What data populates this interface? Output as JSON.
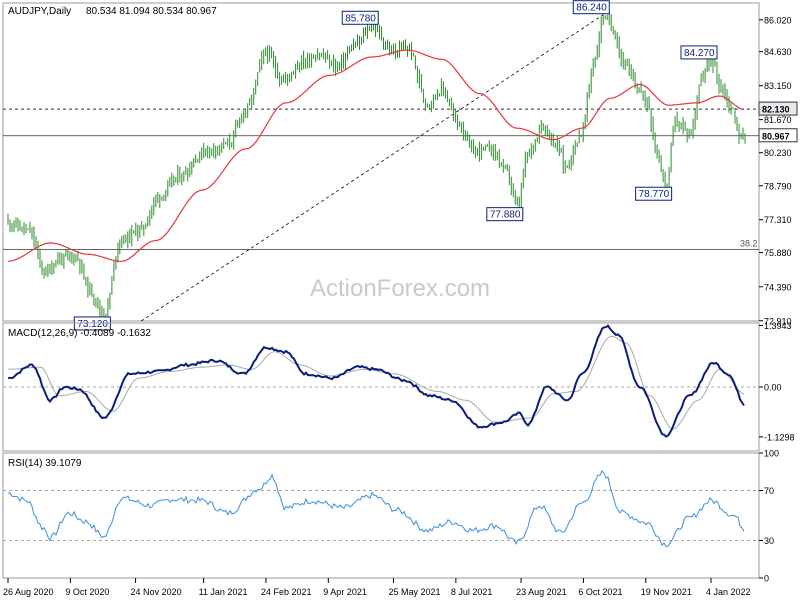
{
  "colors": {
    "price_bars": "#2e8b2e",
    "ma": "#e8353a",
    "macd": "#0b1f7a",
    "signal": "#a8a8a8",
    "rsi": "#3a8fe0",
    "grid": "#888888",
    "label_box": "#0b1f7a",
    "watermark": "#c9c9c9"
  },
  "chart_data": [
    {
      "type": "ohlc",
      "title": "AUDJPY,Daily",
      "ohlc_header": "80.534 81.094 80.534 80.967",
      "watermark": "ActionForex.com",
      "y_ticks": [
        "86.020",
        "84.630",
        "83.150",
        "81.670",
        "80.230",
        "78.790",
        "77.310",
        "75.880",
        "74.390",
        "72.910"
      ],
      "ylim": [
        72.9,
        86.75
      ],
      "x_tick_labels": [
        "26 Aug 2020",
        "9 Oct 2020",
        "24 Nov 2020",
        "11 Jan 2021",
        "24 Feb 2021",
        "9 Apr 2021",
        "25 May 2021",
        "8 Jul 2021",
        "23 Aug 2021",
        "6 Oct 2021",
        "19 Nov 2021",
        "4 Jan 2022"
      ],
      "close_anchors": [
        {
          "date": "2020-08-26",
          "value": 77.2
        },
        {
          "date": "2020-09-10",
          "value": 76.8
        },
        {
          "date": "2020-09-21",
          "value": 75.0
        },
        {
          "date": "2020-10-01",
          "value": 75.6
        },
        {
          "date": "2020-10-13",
          "value": 75.7
        },
        {
          "date": "2020-10-23",
          "value": 74.2
        },
        {
          "date": "2020-11-02",
          "value": 73.12
        },
        {
          "date": "2020-11-13",
          "value": 76.4
        },
        {
          "date": "2020-11-28",
          "value": 76.9
        },
        {
          "date": "2020-12-10",
          "value": 78.3
        },
        {
          "date": "2020-12-25",
          "value": 79.2
        },
        {
          "date": "2021-01-12",
          "value": 80.3
        },
        {
          "date": "2021-01-28",
          "value": 80.6
        },
        {
          "date": "2021-02-10",
          "value": 82.1
        },
        {
          "date": "2021-02-24",
          "value": 84.6
        },
        {
          "date": "2021-03-08",
          "value": 83.4
        },
        {
          "date": "2021-03-22",
          "value": 84.2
        },
        {
          "date": "2021-04-02",
          "value": 84.5
        },
        {
          "date": "2021-04-15",
          "value": 84.0
        },
        {
          "date": "2021-04-28",
          "value": 84.9
        },
        {
          "date": "2021-05-10",
          "value": 85.78
        },
        {
          "date": "2021-05-24",
          "value": 84.6
        },
        {
          "date": "2021-06-04",
          "value": 84.8
        },
        {
          "date": "2021-06-18",
          "value": 82.4
        },
        {
          "date": "2021-06-28",
          "value": 83.0
        },
        {
          "date": "2021-07-10",
          "value": 81.5
        },
        {
          "date": "2021-07-20",
          "value": 80.3
        },
        {
          "date": "2021-08-02",
          "value": 80.4
        },
        {
          "date": "2021-08-13",
          "value": 79.4
        },
        {
          "date": "2021-08-20",
          "value": 77.88
        },
        {
          "date": "2021-08-28",
          "value": 80.2
        },
        {
          "date": "2021-09-07",
          "value": 81.4
        },
        {
          "date": "2021-09-18",
          "value": 80.5
        },
        {
          "date": "2021-09-23",
          "value": 79.6
        },
        {
          "date": "2021-10-04",
          "value": 81.0
        },
        {
          "date": "2021-10-14",
          "value": 84.3
        },
        {
          "date": "2021-10-20",
          "value": 86.24
        },
        {
          "date": "2021-10-27",
          "value": 85.6
        },
        {
          "date": "2021-11-03",
          "value": 84.2
        },
        {
          "date": "2021-11-12",
          "value": 83.2
        },
        {
          "date": "2021-11-20",
          "value": 82.4
        },
        {
          "date": "2021-11-27",
          "value": 80.2
        },
        {
          "date": "2021-12-03",
          "value": 78.77
        },
        {
          "date": "2021-12-10",
          "value": 81.6
        },
        {
          "date": "2021-12-20",
          "value": 81.0
        },
        {
          "date": "2021-12-28",
          "value": 83.4
        },
        {
          "date": "2022-01-04",
          "value": 84.27
        },
        {
          "date": "2022-01-12",
          "value": 83.0
        },
        {
          "date": "2022-01-18",
          "value": 82.2
        },
        {
          "date": "2022-01-25",
          "value": 80.9
        },
        {
          "date": "2022-01-28",
          "value": 80.967
        }
      ],
      "ma_anchors": [
        {
          "date": "2020-08-26",
          "value": 75.5
        },
        {
          "date": "2020-09-25",
          "value": 76.3
        },
        {
          "date": "2020-10-22",
          "value": 75.8
        },
        {
          "date": "2020-11-14",
          "value": 75.5
        },
        {
          "date": "2020-12-08",
          "value": 76.4
        },
        {
          "date": "2021-01-10",
          "value": 78.6
        },
        {
          "date": "2021-02-10",
          "value": 80.4
        },
        {
          "date": "2021-03-10",
          "value": 82.4
        },
        {
          "date": "2021-04-10",
          "value": 83.6
        },
        {
          "date": "2021-05-10",
          "value": 84.4
        },
        {
          "date": "2021-06-04",
          "value": 84.7
        },
        {
          "date": "2021-06-28",
          "value": 84.3
        },
        {
          "date": "2021-07-25",
          "value": 82.8
        },
        {
          "date": "2021-08-20",
          "value": 81.3
        },
        {
          "date": "2021-09-15",
          "value": 80.8
        },
        {
          "date": "2021-10-05",
          "value": 81.3
        },
        {
          "date": "2021-10-25",
          "value": 82.6
        },
        {
          "date": "2021-11-15",
          "value": 83.2
        },
        {
          "date": "2021-12-05",
          "value": 82.3
        },
        {
          "date": "2021-12-25",
          "value": 82.4
        },
        {
          "date": "2022-01-10",
          "value": 82.7
        },
        {
          "date": "2022-01-28",
          "value": 82.1
        }
      ],
      "annotations": [
        {
          "label": "73.120",
          "date": "2020-11-02",
          "value": 73.12,
          "anchor": "bottom"
        },
        {
          "label": "85.780",
          "date": "2021-05-10",
          "value": 85.78,
          "anchor": "top"
        },
        {
          "label": "77.880",
          "date": "2021-08-20",
          "value": 77.88,
          "anchor": "bottom"
        },
        {
          "label": "86.240",
          "date": "2021-10-20",
          "value": 86.24,
          "anchor": "top"
        },
        {
          "label": "78.770",
          "date": "2021-12-03",
          "value": 78.77,
          "anchor": "bottom"
        },
        {
          "label": "84.270",
          "date": "2022-01-04",
          "value": 84.27,
          "anchor": "top"
        }
      ],
      "horizontal_lines": [
        {
          "value": 82.13,
          "style": "dashed",
          "label": "82.130"
        },
        {
          "value": 80.967,
          "style": "solid",
          "label": "80.967"
        },
        {
          "value": 76.02,
          "style": "solid",
          "label": "38.2"
        }
      ],
      "trendline": {
        "start": {
          "date": "2020-11-28",
          "value": 72.9
        },
        "end": {
          "date": "2021-10-20",
          "value": 86.24
        }
      }
    },
    {
      "type": "line",
      "title": "MACD(12,26,9) -0.4089 -0.1632",
      "y_ticks": [
        "1.3943",
        "0.00",
        "-1.1298"
      ],
      "ylim": [
        -1.45,
        1.45
      ],
      "series": [
        {
          "name": "MACD",
          "values": [
            {
              "date": "2020-08-26",
              "value": 0.2
            },
            {
              "date": "2020-09-12",
              "value": 0.5
            },
            {
              "date": "2020-09-25",
              "value": -0.3
            },
            {
              "date": "2020-10-05",
              "value": 0.0
            },
            {
              "date": "2020-10-15",
              "value": -0.05
            },
            {
              "date": "2020-11-02",
              "value": -0.7
            },
            {
              "date": "2020-11-20",
              "value": 0.3
            },
            {
              "date": "2020-12-10",
              "value": 0.35
            },
            {
              "date": "2020-12-30",
              "value": 0.5
            },
            {
              "date": "2021-01-20",
              "value": 0.6
            },
            {
              "date": "2021-02-08",
              "value": 0.3
            },
            {
              "date": "2021-02-24",
              "value": 0.9
            },
            {
              "date": "2021-03-10",
              "value": 0.8
            },
            {
              "date": "2021-03-24",
              "value": 0.3
            },
            {
              "date": "2021-04-12",
              "value": 0.2
            },
            {
              "date": "2021-04-30",
              "value": 0.45
            },
            {
              "date": "2021-05-12",
              "value": 0.4
            },
            {
              "date": "2021-06-02",
              "value": 0.15
            },
            {
              "date": "2021-06-20",
              "value": -0.2
            },
            {
              "date": "2021-07-05",
              "value": -0.3
            },
            {
              "date": "2021-07-25",
              "value": -0.9
            },
            {
              "date": "2021-08-10",
              "value": -0.8
            },
            {
              "date": "2021-08-22",
              "value": -0.6
            },
            {
              "date": "2021-08-28",
              "value": -0.85
            },
            {
              "date": "2021-09-10",
              "value": 0.0
            },
            {
              "date": "2021-09-25",
              "value": -0.3
            },
            {
              "date": "2021-10-05",
              "value": 0.3
            },
            {
              "date": "2021-10-22",
              "value": 1.38
            },
            {
              "date": "2021-10-30",
              "value": 1.2
            },
            {
              "date": "2021-11-15",
              "value": 0.0
            },
            {
              "date": "2021-12-03",
              "value": -1.1
            },
            {
              "date": "2021-12-20",
              "value": -0.2
            },
            {
              "date": "2022-01-06",
              "value": 0.55
            },
            {
              "date": "2022-01-16",
              "value": 0.3
            },
            {
              "date": "2022-01-28",
              "value": -0.4
            }
          ]
        },
        {
          "name": "Signal",
          "values": [
            {
              "date": "2020-08-26",
              "value": 0.4
            },
            {
              "date": "2020-09-18",
              "value": 0.45
            },
            {
              "date": "2020-10-01",
              "value": -0.2
            },
            {
              "date": "2020-10-20",
              "value": -0.1
            },
            {
              "date": "2020-11-08",
              "value": -0.55
            },
            {
              "date": "2020-11-26",
              "value": 0.2
            },
            {
              "date": "2020-12-18",
              "value": 0.35
            },
            {
              "date": "2021-01-10",
              "value": 0.45
            },
            {
              "date": "2021-01-28",
              "value": 0.5
            },
            {
              "date": "2021-02-14",
              "value": 0.4
            },
            {
              "date": "2021-03-02",
              "value": 0.8
            },
            {
              "date": "2021-03-20",
              "value": 0.5
            },
            {
              "date": "2021-04-10",
              "value": 0.25
            },
            {
              "date": "2021-05-05",
              "value": 0.4
            },
            {
              "date": "2021-05-25",
              "value": 0.3
            },
            {
              "date": "2021-06-25",
              "value": -0.1
            },
            {
              "date": "2021-07-15",
              "value": -0.3
            },
            {
              "date": "2021-08-05",
              "value": -0.8
            },
            {
              "date": "2021-08-30",
              "value": -0.7
            },
            {
              "date": "2021-09-15",
              "value": -0.15
            },
            {
              "date": "2021-10-01",
              "value": -0.1
            },
            {
              "date": "2021-10-26",
              "value": 1.15
            },
            {
              "date": "2021-11-05",
              "value": 1.0
            },
            {
              "date": "2021-11-22",
              "value": -0.2
            },
            {
              "date": "2021-12-08",
              "value": -0.95
            },
            {
              "date": "2021-12-26",
              "value": -0.3
            },
            {
              "date": "2022-01-10",
              "value": 0.4
            },
            {
              "date": "2022-01-28",
              "value": -0.16
            }
          ]
        }
      ]
    },
    {
      "type": "line",
      "title": "RSI(14) 39.1079",
      "y_ticks": [
        "100",
        "70",
        "30",
        "0"
      ],
      "ylim": [
        0,
        100
      ],
      "levels": [
        70,
        30
      ],
      "series": [
        {
          "name": "RSI",
          "values": [
            {
              "date": "2020-08-26",
              "value": 68
            },
            {
              "date": "2020-09-08",
              "value": 62
            },
            {
              "date": "2020-09-20",
              "value": 40
            },
            {
              "date": "2020-09-25",
              "value": 32
            },
            {
              "date": "2020-10-08",
              "value": 52
            },
            {
              "date": "2020-10-20",
              "value": 45
            },
            {
              "date": "2020-11-02",
              "value": 33
            },
            {
              "date": "2020-11-14",
              "value": 64
            },
            {
              "date": "2020-12-05",
              "value": 58
            },
            {
              "date": "2020-12-20",
              "value": 63
            },
            {
              "date": "2021-01-10",
              "value": 62
            },
            {
              "date": "2021-01-28",
              "value": 52
            },
            {
              "date": "2021-02-20",
              "value": 72
            },
            {
              "date": "2021-02-28",
              "value": 82
            },
            {
              "date": "2021-03-10",
              "value": 56
            },
            {
              "date": "2021-03-28",
              "value": 62
            },
            {
              "date": "2021-04-20",
              "value": 56
            },
            {
              "date": "2021-05-10",
              "value": 66
            },
            {
              "date": "2021-05-28",
              "value": 54
            },
            {
              "date": "2021-06-18",
              "value": 38
            },
            {
              "date": "2021-07-05",
              "value": 45
            },
            {
              "date": "2021-07-20",
              "value": 38
            },
            {
              "date": "2021-08-05",
              "value": 42
            },
            {
              "date": "2021-08-20",
              "value": 28
            },
            {
              "date": "2021-09-05",
              "value": 58
            },
            {
              "date": "2021-09-20",
              "value": 36
            },
            {
              "date": "2021-10-05",
              "value": 60
            },
            {
              "date": "2021-10-20",
              "value": 84
            },
            {
              "date": "2021-11-02",
              "value": 52
            },
            {
              "date": "2021-11-20",
              "value": 44
            },
            {
              "date": "2021-12-03",
              "value": 27
            },
            {
              "date": "2021-12-20",
              "value": 48
            },
            {
              "date": "2022-01-04",
              "value": 62
            },
            {
              "date": "2022-01-20",
              "value": 50
            },
            {
              "date": "2022-01-28",
              "value": 39.1
            }
          ]
        }
      ]
    }
  ]
}
